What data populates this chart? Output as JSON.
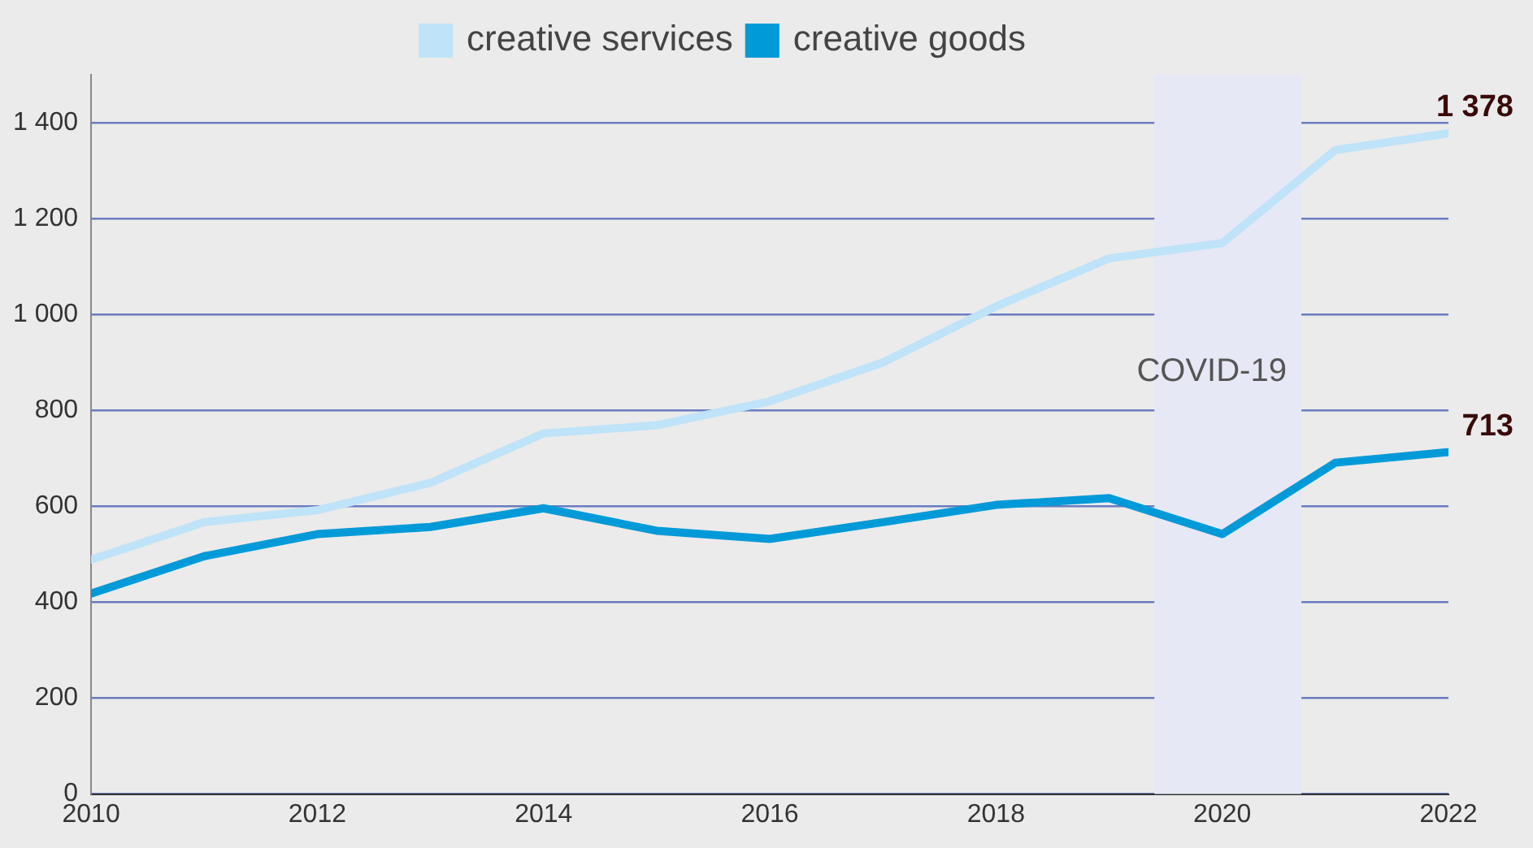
{
  "chart_data": {
    "type": "line",
    "x": [
      2010,
      2011,
      2012,
      2013,
      2014,
      2015,
      2016,
      2017,
      2018,
      2019,
      2020,
      2021,
      2022
    ],
    "series": [
      {
        "name": "creative services",
        "color": "#bfe3f8",
        "values": [
          489,
          567,
          592,
          649,
          752,
          769,
          819,
          900,
          1017,
          1117,
          1149,
          1343,
          1378
        ],
        "value_labels": [
          null,
          null,
          null,
          null,
          null,
          null,
          null,
          null,
          null,
          null,
          null,
          null,
          "1 378"
        ]
      },
      {
        "name": "creative goods",
        "color": "#009ad8",
        "values": [
          418,
          496,
          542,
          557,
          596,
          549,
          532,
          567,
          603,
          617,
          542,
          691,
          713
        ],
        "value_labels": [
          null,
          null,
          null,
          null,
          null,
          null,
          null,
          null,
          null,
          null,
          null,
          null,
          "713"
        ]
      }
    ],
    "xlim": [
      2010,
      2022
    ],
    "xticks": [
      2010,
      2012,
      2014,
      2016,
      2018,
      2020,
      2022
    ],
    "ylim": [
      0,
      1500
    ],
    "yticks": [
      0,
      {
        "value": 200,
        "label": "200"
      },
      {
        "value": 400,
        "label": "400"
      },
      {
        "value": 600,
        "label": "600"
      },
      {
        "value": 800,
        "label": "800"
      },
      {
        "value": 1000,
        "label": "1 000"
      },
      {
        "value": 1200,
        "label": "1 200"
      },
      {
        "value": 1400,
        "label": "1 400"
      }
    ],
    "bands": [
      {
        "axis": "x",
        "from": 2019.4,
        "to": 2020.7,
        "label": "COVID-19",
        "color": "#e6e8f6"
      }
    ],
    "grid": "y",
    "legend": "top",
    "marker": "none"
  }
}
